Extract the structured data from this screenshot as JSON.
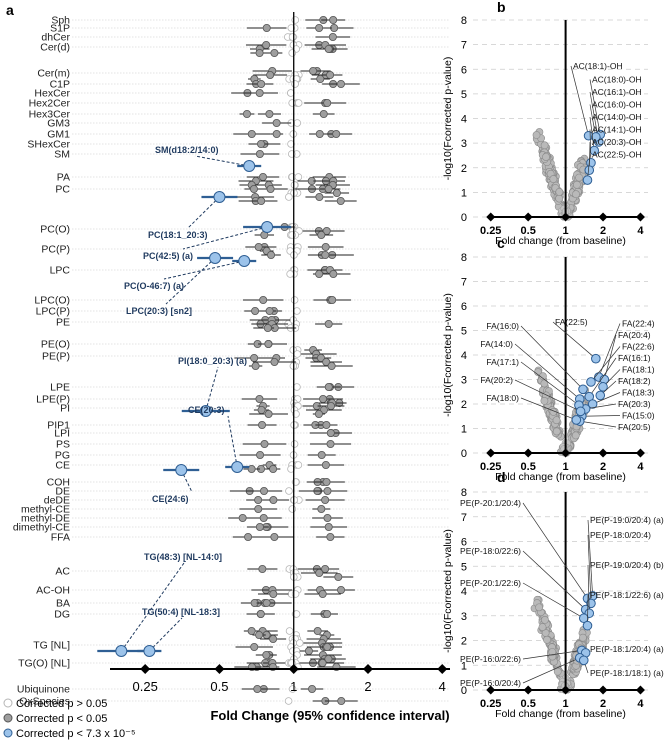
{
  "figure": {
    "panel_labels": [
      "a",
      "b",
      "c",
      "d"
    ],
    "legend": [
      {
        "label": "Corrected p > 0.05",
        "style": "open"
      },
      {
        "label": "Corrected p < 0.05",
        "style": "grey"
      },
      {
        "label": "Corrected p < 7.3 x 10⁻⁵",
        "style": "blue"
      }
    ],
    "colors": {
      "grey": "#9e9e9e",
      "grey_edge": "#555555",
      "blue": "#9cc3ea",
      "blue_edge": "#2f5f94",
      "open_edge": "#b5b5b5",
      "label_blue": "#1f3a5f",
      "line": "#000000",
      "grid": "#c8c8c8"
    }
  },
  "chart_data": [
    {
      "panel": "a",
      "type": "scatter",
      "xlabel": "Fold Change (95% confidence interval)",
      "x_scale": "log",
      "xlim": [
        0.18,
        4.3
      ],
      "x_ticks": [
        0.25,
        0.5,
        1,
        2,
        4
      ],
      "x_tick_labels": [
        "0.25",
        "0.5",
        "1",
        "2",
        "4"
      ],
      "reference_line": 1,
      "categories": [
        "Sph",
        "S1P",
        "dhCer",
        "Cer(d)",
        "Cer(m)",
        "C1P",
        "HexCer",
        "Hex2Cer",
        "Hex3Cer",
        "GM3",
        "GM1",
        "SHexCer",
        "SM",
        "PA",
        "PC",
        "PC(O)",
        "PC(P)",
        "LPC",
        "LPC(O)",
        "LPC(P)",
        "PE",
        "PE(O)",
        "PE(P)",
        "LPE",
        "LPE(P)",
        "PI",
        "PIP1",
        "LPI",
        "PS",
        "PG",
        "CE",
        "COH",
        "DE",
        "deDE",
        "methyl-CE",
        "methyl-DE",
        "dimethyl-CE",
        "FFA",
        "AC",
        "AC-OH",
        "BA",
        "DG",
        "TG [NL]",
        "TG(O) [NL]",
        "Ubiquinone",
        "OxSpecies"
      ],
      "highlights": [
        {
          "label": "SM(d18:2/14:0)",
          "fc": 0.66,
          "class": "SM"
        },
        {
          "label": "PC(18:1_20:3)",
          "fc": 0.5,
          "class": "PC"
        },
        {
          "label": "PC(42:5) (a)",
          "fc": 0.78,
          "class": "PC(O)"
        },
        {
          "label": "PC(O-46:7) (a)",
          "fc": 0.63,
          "class": "PC(P)"
        },
        {
          "label": "LPC(20:3) [sn2]",
          "fc": 0.48,
          "class": "LPC"
        },
        {
          "label": "PI(18:0_20:3) (a)",
          "fc": 0.44,
          "class": "LPE(P)"
        },
        {
          "label": "CE(20:3)",
          "fc": 0.59,
          "class": "CE"
        },
        {
          "label": "CE(24:6)",
          "fc": 0.35,
          "class": "COH"
        },
        {
          "label": "TG(48:3) [NL-14:0]",
          "fc": 0.2,
          "class": "TG [NL]"
        },
        {
          "label": "TG(50:4) [NL-18:3]",
          "fc": 0.26,
          "class": "TG [NL]"
        }
      ]
    },
    {
      "panel": "b",
      "type": "scatter",
      "xlabel": "Fold change (from baseline)",
      "ylabel": "-log10(Fcorrected p-value)",
      "x_scale": "log",
      "xlim": [
        0.18,
        4.6
      ],
      "ylim": [
        0,
        8
      ],
      "y_ticks": [
        0,
        1,
        2,
        3,
        4,
        5,
        6,
        7,
        8
      ],
      "x_ticks": [
        0.25,
        0.5,
        1,
        2,
        4
      ],
      "x_tick_labels": [
        "0.25",
        "0.5",
        "1",
        "2",
        "4"
      ],
      "annotations": [
        {
          "label": "AC(18:1)-OH",
          "x": 1.53,
          "y": 3.3
        },
        {
          "label": "AC(18:0)-OH",
          "x": 1.9,
          "y": 3.35
        },
        {
          "label": "AC(16:1)-OH",
          "x": 1.85,
          "y": 3.05
        },
        {
          "label": "AC(16:0)-OH",
          "x": 1.75,
          "y": 3.25
        },
        {
          "label": "AC(14:0)-OH",
          "x": 1.7,
          "y": 2.7
        },
        {
          "label": "AC(14:1)-OH",
          "x": 1.6,
          "y": 2.2
        },
        {
          "label": "AC(20:3)-OH",
          "x": 1.55,
          "y": 1.9
        },
        {
          "label": "AC(22:5)-OH",
          "x": 1.5,
          "y": 1.5
        }
      ]
    },
    {
      "panel": "c",
      "type": "scatter",
      "xlabel": "Fold change (from baseline)",
      "ylabel": "-log10(Fcorrected p-value)",
      "x_scale": "log",
      "xlim": [
        0.18,
        4.6
      ],
      "ylim": [
        0,
        8
      ],
      "y_ticks": [
        0,
        1,
        2,
        3,
        4,
        5,
        6,
        7,
        8
      ],
      "x_ticks": [
        0.25,
        0.5,
        1,
        2,
        4
      ],
      "x_tick_labels": [
        "0.25",
        "0.5",
        "1",
        "2",
        "4"
      ],
      "annotations": [
        {
          "label": "FA(22:5)",
          "x": 1.75,
          "y": 3.85
        },
        {
          "label": "FA(22:4)",
          "x": 1.85,
          "y": 3.1
        },
        {
          "label": "FA(20:4)",
          "x": 2.05,
          "y": 3.0
        },
        {
          "label": "FA(22:6)",
          "x": 1.6,
          "y": 2.9
        },
        {
          "label": "FA(16:1)",
          "x": 1.55,
          "y": 2.3
        },
        {
          "label": "FA(18:1)",
          "x": 2.0,
          "y": 2.7
        },
        {
          "label": "FA(18:2)",
          "x": 1.9,
          "y": 2.35
        },
        {
          "label": "FA(18:3)",
          "x": 1.65,
          "y": 2.0
        },
        {
          "label": "FA(20:3)",
          "x": 1.45,
          "y": 1.8
        },
        {
          "label": "FA(15:0)",
          "x": 1.35,
          "y": 1.5
        },
        {
          "label": "FA(20:5)",
          "x": 1.3,
          "y": 1.3
        },
        {
          "label": "FA(16:0)",
          "x": 1.38,
          "y": 2.6
        },
        {
          "label": "FA(14:0)",
          "x": 1.3,
          "y": 2.2
        },
        {
          "label": "FA(17:1)",
          "x": 1.28,
          "y": 1.95
        },
        {
          "label": "FA(20:2)",
          "x": 1.32,
          "y": 1.7
        },
        {
          "label": "FA(18:0)",
          "x": 1.22,
          "y": 1.35
        }
      ]
    },
    {
      "panel": "d",
      "type": "scatter",
      "xlabel": "Fold change (from baseline)",
      "ylabel": "-log10(Fcorrected p-value)",
      "x_scale": "log",
      "xlim": [
        0.18,
        4.6
      ],
      "ylim": [
        0,
        8
      ],
      "y_ticks": [
        0,
        1,
        2,
        3,
        4,
        5,
        6,
        7,
        8
      ],
      "x_ticks": [
        0.25,
        0.5,
        1,
        2,
        4
      ],
      "x_tick_labels": [
        "0.25",
        "0.5",
        "1",
        "2",
        "4"
      ],
      "annotations": [
        {
          "label": "PE(P-20:1/20:4)",
          "x": 1.5,
          "y": 3.7
        },
        {
          "label": "PE(P-19:0/20:4) (a)",
          "x": 1.65,
          "y": 3.8
        },
        {
          "label": "PE(P-18:0/20:4)",
          "x": 1.6,
          "y": 3.5
        },
        {
          "label": "PE(P-18:0/22:6)",
          "x": 1.45,
          "y": 3.25
        },
        {
          "label": "PE(P-19:0/20:4) (b)",
          "x": 1.55,
          "y": 3.1
        },
        {
          "label": "PE(P-20:1/22:6)",
          "x": 1.4,
          "y": 2.9
        },
        {
          "label": "PE(P-18:1/22:6) (a)",
          "x": 1.5,
          "y": 2.6
        },
        {
          "label": "PE(P-16:0/22:6)",
          "x": 1.35,
          "y": 1.6
        },
        {
          "label": "PE(P-18:1/20:4) (a)",
          "x": 1.45,
          "y": 1.5
        },
        {
          "label": "PE(P-16:0/20:4)",
          "x": 1.3,
          "y": 1.3
        },
        {
          "label": "PE(P-18:1/18:1) (a)",
          "x": 1.4,
          "y": 1.2
        }
      ]
    }
  ]
}
